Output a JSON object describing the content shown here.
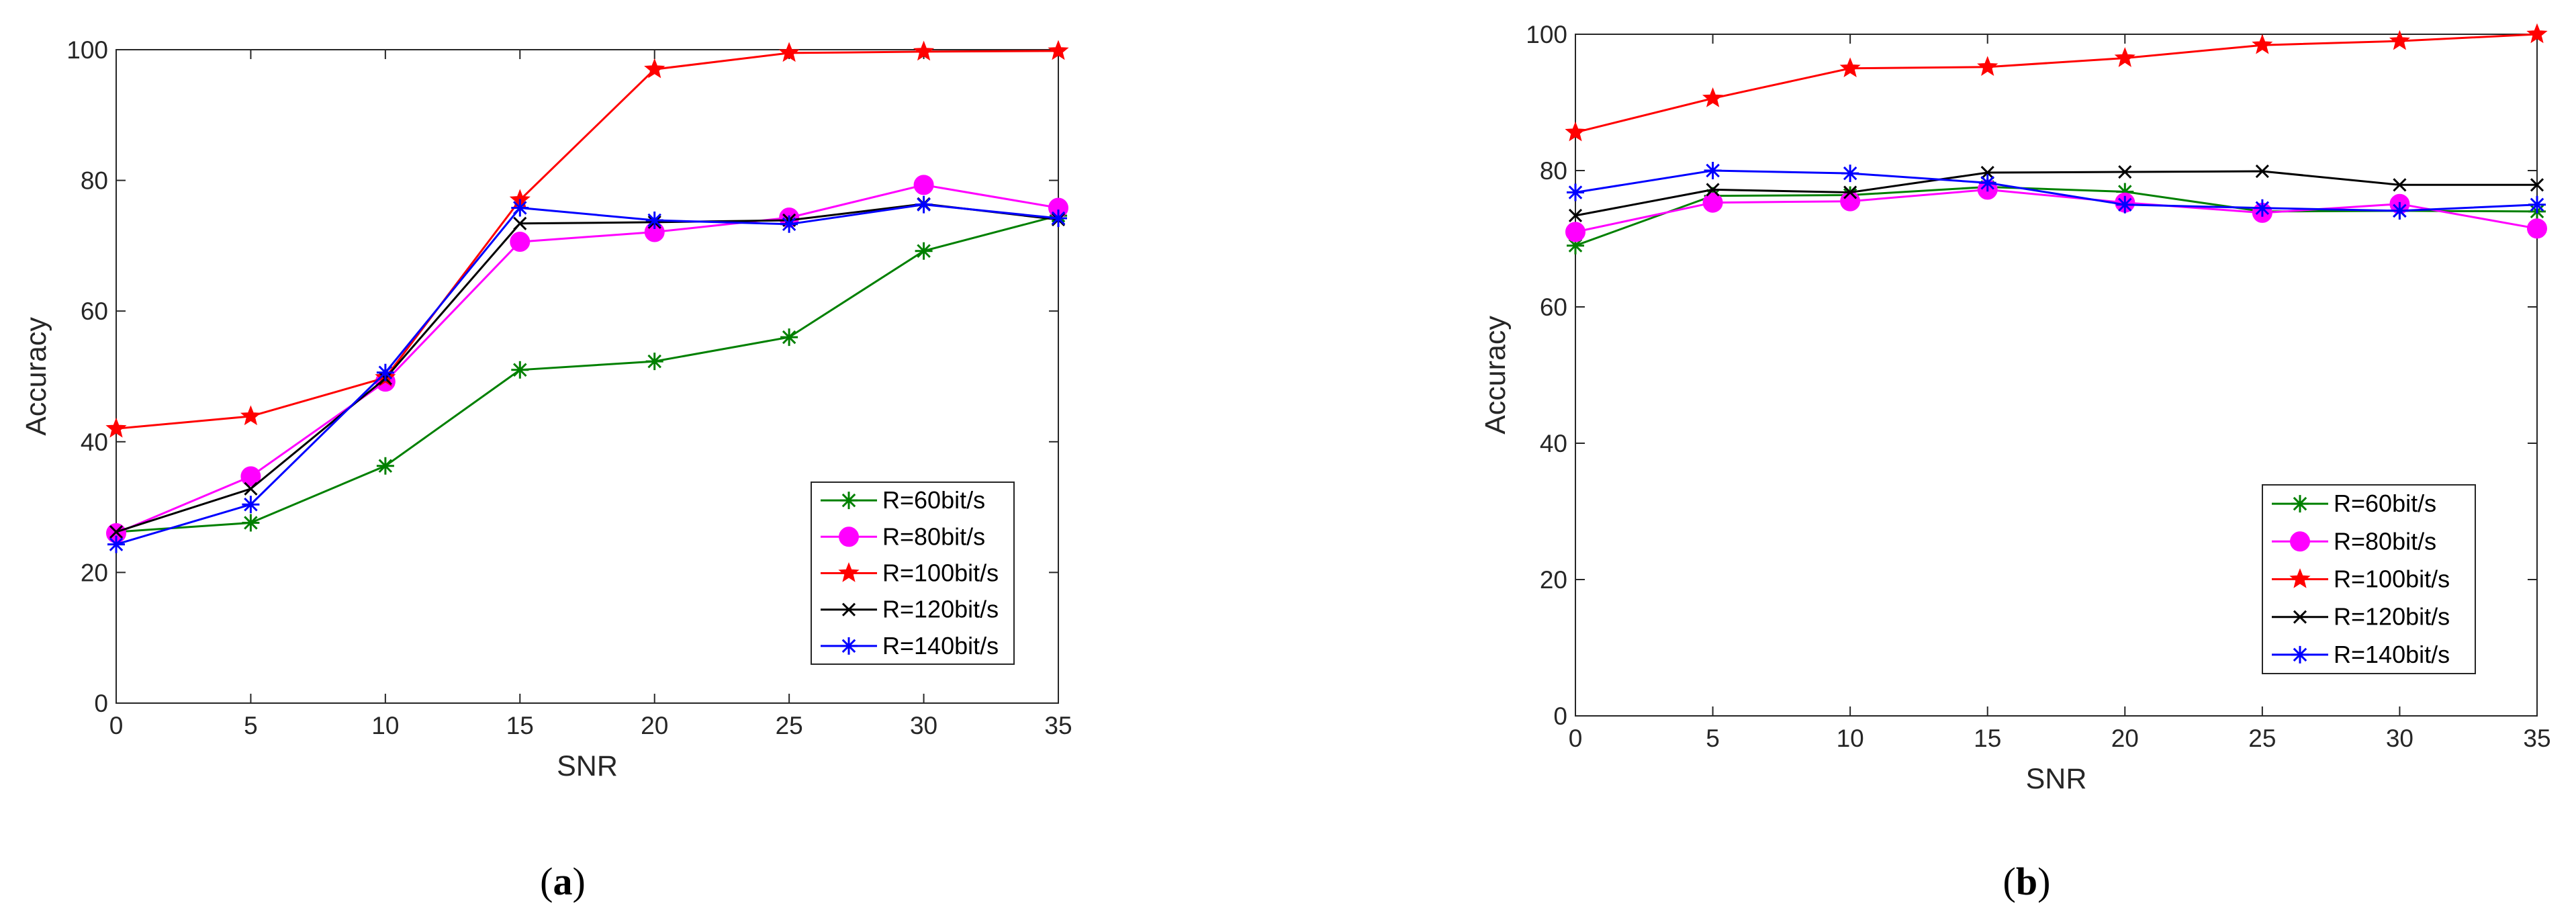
{
  "chart_data": [
    {
      "type": "line",
      "panel": "a",
      "caption_letter": "a",
      "caption_open": "(",
      "caption_close": ")",
      "xlabel": "SNR",
      "ylabel": "Accuracy",
      "xlim": [
        0,
        35
      ],
      "ylim": [
        0,
        100
      ],
      "xticks": [
        0,
        5,
        10,
        15,
        20,
        25,
        30,
        35
      ],
      "yticks": [
        0,
        20,
        40,
        60,
        80,
        100
      ],
      "legend_position": "bottom-right",
      "x": [
        0,
        5,
        10,
        15,
        20,
        25,
        30,
        35
      ],
      "series": [
        {
          "name": "R=60bit/s",
          "color": "#008000",
          "marker": "asterisk",
          "values": [
            26.2,
            27.6,
            36.3,
            51.0,
            52.3,
            56.0,
            69.2,
            74.6
          ]
        },
        {
          "name": "R=80bit/s",
          "color": "#ff00ff",
          "marker": "circle",
          "values": [
            26.0,
            34.7,
            49.2,
            70.6,
            72.1,
            74.3,
            79.3,
            75.8
          ]
        },
        {
          "name": "R=100bit/s",
          "color": "#ff0000",
          "marker": "star",
          "values": [
            42.0,
            43.9,
            49.8,
            77.0,
            97.0,
            99.5,
            99.7,
            99.8
          ]
        },
        {
          "name": "R=120bit/s",
          "color": "#000000",
          "marker": "x",
          "values": [
            26.2,
            32.8,
            49.7,
            73.4,
            73.6,
            73.9,
            76.4,
            74.0
          ]
        },
        {
          "name": "R=140bit/s",
          "color": "#0000ff",
          "marker": "asterisk",
          "values": [
            24.3,
            30.4,
            50.6,
            75.8,
            73.9,
            73.3,
            76.3,
            74.2
          ]
        }
      ]
    },
    {
      "type": "line",
      "panel": "b",
      "caption_letter": "b",
      "caption_open": "(",
      "caption_close": ")",
      "xlabel": "SNR",
      "ylabel": "Accuracy",
      "xlim": [
        0,
        35
      ],
      "ylim": [
        0,
        100
      ],
      "xticks": [
        0,
        5,
        10,
        15,
        20,
        25,
        30,
        35
      ],
      "yticks": [
        0,
        20,
        40,
        60,
        80,
        100
      ],
      "legend_position": "bottom-right",
      "x": [
        0,
        5,
        10,
        15,
        20,
        25,
        30,
        35
      ],
      "series": [
        {
          "name": "R=60bit/s",
          "color": "#008000",
          "marker": "asterisk",
          "values": [
            69.0,
            76.3,
            76.4,
            77.6,
            76.9,
            74.0,
            74.1,
            74.0
          ]
        },
        {
          "name": "R=80bit/s",
          "color": "#ff00ff",
          "marker": "circle",
          "values": [
            71.0,
            75.3,
            75.5,
            77.2,
            75.3,
            73.8,
            75.1,
            71.5
          ]
        },
        {
          "name": "R=100bit/s",
          "color": "#ff0000",
          "marker": "star",
          "values": [
            85.6,
            90.6,
            95.0,
            95.2,
            96.5,
            98.4,
            99.0,
            100.0
          ]
        },
        {
          "name": "R=120bit/s",
          "color": "#000000",
          "marker": "x",
          "values": [
            73.4,
            77.2,
            76.8,
            79.7,
            79.8,
            79.9,
            77.9,
            77.9
          ]
        },
        {
          "name": "R=140bit/s",
          "color": "#0000ff",
          "marker": "asterisk",
          "values": [
            76.8,
            80.0,
            79.6,
            78.2,
            75.0,
            74.5,
            74.1,
            75.0
          ]
        }
      ]
    }
  ]
}
